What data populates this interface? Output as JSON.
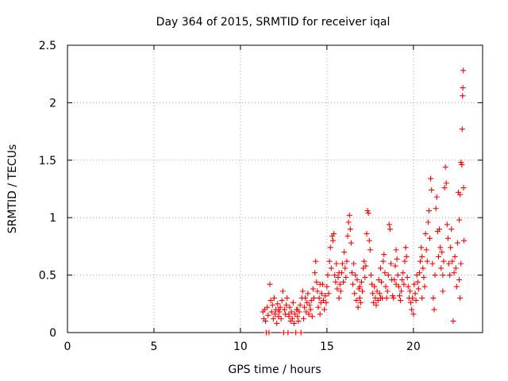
{
  "chart_data": {
    "type": "scatter",
    "title": "Day 364 of 2015, SRMTID for receiver iqal",
    "xlabel": "GPS time / hours",
    "ylabel": "SRMTID / TECUs",
    "xlim": [
      0,
      24
    ],
    "ylim": [
      0,
      2.5
    ],
    "xticks": [
      0,
      5,
      10,
      15,
      20
    ],
    "xtick_labels": [
      "0",
      "5",
      "10",
      "15",
      "20"
    ],
    "yticks": [
      0,
      0.5,
      1,
      1.5,
      2,
      2.5
    ],
    "ytick_labels": [
      "0",
      "0.5",
      "1",
      "1.5",
      "2",
      "2.5"
    ],
    "grid": true,
    "marker": "+",
    "color": "#ff0000",
    "series": [
      {
        "name": "SRMTID",
        "points": [
          [
            11.3,
            0.18
          ],
          [
            11.35,
            0.12
          ],
          [
            11.4,
            0.2
          ],
          [
            11.45,
            0.1
          ],
          [
            11.5,
            0.0
          ],
          [
            11.55,
            0.22
          ],
          [
            11.6,
            0.15
          ],
          [
            11.65,
            0.0
          ],
          [
            11.7,
            0.42
          ],
          [
            11.75,
            0.28
          ],
          [
            11.8,
            0.18
          ],
          [
            11.85,
            0.24
          ],
          [
            11.9,
            0.12
          ],
          [
            11.95,
            0.3
          ],
          [
            12.0,
            0.16
          ],
          [
            12.05,
            0.2
          ],
          [
            12.1,
            0.08
          ],
          [
            12.15,
            0.25
          ],
          [
            12.2,
            0.14
          ],
          [
            12.25,
            0.18
          ],
          [
            12.3,
            0.22
          ],
          [
            12.35,
            0.12
          ],
          [
            12.4,
            0.28
          ],
          [
            12.45,
            0.36
          ],
          [
            12.5,
            0.0
          ],
          [
            12.55,
            0.2
          ],
          [
            12.6,
            0.16
          ],
          [
            12.65,
            0.24
          ],
          [
            12.7,
            0.3
          ],
          [
            12.75,
            0.0
          ],
          [
            12.8,
            0.14
          ],
          [
            12.85,
            0.22
          ],
          [
            12.9,
            0.1
          ],
          [
            12.95,
            0.18
          ],
          [
            13.0,
            0.12
          ],
          [
            13.05,
            0.26
          ],
          [
            13.1,
            0.08
          ],
          [
            13.15,
            0.16
          ],
          [
            13.2,
            0.0
          ],
          [
            13.25,
            0.2
          ],
          [
            13.3,
            0.14
          ],
          [
            13.35,
            0.1
          ],
          [
            13.4,
            0.18
          ],
          [
            13.45,
            0.24
          ],
          [
            13.5,
            0.0
          ],
          [
            13.55,
            0.3
          ],
          [
            13.6,
            0.36
          ],
          [
            13.65,
            0.12
          ],
          [
            13.7,
            0.22
          ],
          [
            13.75,
            0.3
          ],
          [
            13.8,
            0.18
          ],
          [
            13.85,
            0.26
          ],
          [
            13.9,
            0.34
          ],
          [
            13.95,
            0.16
          ],
          [
            14.0,
            0.24
          ],
          [
            14.05,
            0.2
          ],
          [
            14.1,
            0.28
          ],
          [
            14.15,
            0.14
          ],
          [
            14.2,
            0.38
          ],
          [
            14.25,
            0.3
          ],
          [
            14.3,
            0.52
          ],
          [
            14.35,
            0.62
          ],
          [
            14.4,
            0.44
          ],
          [
            14.45,
            0.36
          ],
          [
            14.5,
            0.22
          ],
          [
            14.55,
            0.3
          ],
          [
            14.6,
            0.16
          ],
          [
            14.65,
            0.26
          ],
          [
            14.7,
            0.34
          ],
          [
            14.75,
            0.42
          ],
          [
            14.8,
            0.28
          ],
          [
            14.85,
            0.2
          ],
          [
            14.9,
            0.32
          ],
          [
            14.95,
            0.26
          ],
          [
            15.0,
            0.4
          ],
          [
            15.05,
            0.5
          ],
          [
            15.1,
            0.34
          ],
          [
            15.15,
            0.62
          ],
          [
            15.2,
            0.74
          ],
          [
            15.25,
            0.56
          ],
          [
            15.3,
            0.84
          ],
          [
            15.35,
            0.8
          ],
          [
            15.4,
            0.86
          ],
          [
            15.45,
            0.5
          ],
          [
            15.5,
            0.44
          ],
          [
            15.55,
            0.6
          ],
          [
            15.6,
            0.38
          ],
          [
            15.65,
            0.48
          ],
          [
            15.7,
            0.3
          ],
          [
            15.75,
            0.42
          ],
          [
            15.8,
            0.36
          ],
          [
            15.85,
            0.52
          ],
          [
            15.9,
            0.6
          ],
          [
            15.95,
            0.44
          ],
          [
            16.0,
            0.7
          ],
          [
            16.05,
            0.56
          ],
          [
            16.1,
            0.48
          ],
          [
            16.15,
            0.62
          ],
          [
            16.2,
            0.84
          ],
          [
            16.25,
            0.96
          ],
          [
            16.3,
            1.02
          ],
          [
            16.35,
            0.9
          ],
          [
            16.4,
            0.78
          ],
          [
            16.45,
            0.52
          ],
          [
            16.5,
            0.42
          ],
          [
            16.55,
            0.6
          ],
          [
            16.6,
            0.34
          ],
          [
            16.65,
            0.5
          ],
          [
            16.7,
            0.28
          ],
          [
            16.75,
            0.46
          ],
          [
            16.8,
            0.22
          ],
          [
            16.85,
            0.38
          ],
          [
            16.9,
            0.3
          ],
          [
            16.95,
            0.26
          ],
          [
            17.0,
            0.44
          ],
          [
            17.05,
            0.36
          ],
          [
            17.1,
            0.56
          ],
          [
            17.15,
            0.62
          ],
          [
            17.2,
            0.48
          ],
          [
            17.25,
            0.58
          ],
          [
            17.3,
            0.86
          ],
          [
            17.35,
            1.06
          ],
          [
            17.4,
            1.04
          ],
          [
            17.45,
            0.8
          ],
          [
            17.5,
            0.72
          ],
          [
            17.55,
            0.5
          ],
          [
            17.6,
            0.42
          ],
          [
            17.65,
            0.34
          ],
          [
            17.7,
            0.26
          ],
          [
            17.75,
            0.4
          ],
          [
            17.8,
            0.3
          ],
          [
            17.85,
            0.24
          ],
          [
            17.9,
            0.36
          ],
          [
            17.95,
            0.28
          ],
          [
            18.0,
            0.46
          ],
          [
            18.05,
            0.34
          ],
          [
            18.1,
            0.56
          ],
          [
            18.15,
            0.44
          ],
          [
            18.2,
            0.3
          ],
          [
            18.25,
            0.62
          ],
          [
            18.3,
            0.68
          ],
          [
            18.35,
            0.52
          ],
          [
            18.4,
            0.4
          ],
          [
            18.45,
            0.3
          ],
          [
            18.5,
            0.36
          ],
          [
            18.55,
            0.5
          ],
          [
            18.6,
            0.94
          ],
          [
            18.65,
            0.9
          ],
          [
            18.7,
            0.6
          ],
          [
            18.75,
            0.46
          ],
          [
            18.8,
            0.32
          ],
          [
            18.85,
            0.3
          ],
          [
            18.9,
            0.46
          ],
          [
            18.95,
            0.58
          ],
          [
            19.0,
            0.72
          ],
          [
            19.05,
            0.64
          ],
          [
            19.1,
            0.5
          ],
          [
            19.15,
            0.4
          ],
          [
            19.2,
            0.32
          ],
          [
            19.25,
            0.28
          ],
          [
            19.3,
            0.36
          ],
          [
            19.35,
            0.46
          ],
          [
            19.4,
            0.52
          ],
          [
            19.45,
            0.42
          ],
          [
            19.5,
            0.62
          ],
          [
            19.55,
            0.74
          ],
          [
            19.6,
            0.66
          ],
          [
            19.65,
            0.48
          ],
          [
            19.7,
            0.4
          ],
          [
            19.75,
            0.3
          ],
          [
            19.8,
            0.36
          ],
          [
            19.85,
            0.26
          ],
          [
            19.9,
            0.2
          ],
          [
            19.95,
            0.3
          ],
          [
            20.0,
            0.16
          ],
          [
            20.05,
            0.42
          ],
          [
            20.1,
            0.34
          ],
          [
            20.15,
            0.28
          ],
          [
            20.2,
            0.5
          ],
          [
            20.25,
            0.44
          ],
          [
            20.3,
            0.38
          ],
          [
            20.35,
            0.52
          ],
          [
            20.4,
            0.62
          ],
          [
            20.45,
            0.74
          ],
          [
            20.5,
            0.66
          ],
          [
            20.55,
            0.56
          ],
          [
            20.6,
            0.48
          ],
          [
            20.65,
            0.4
          ],
          [
            20.7,
            0.86
          ],
          [
            20.75,
            0.72
          ],
          [
            20.8,
            0.62
          ],
          [
            20.85,
            0.96
          ],
          [
            20.9,
            1.06
          ],
          [
            20.95,
            0.82
          ],
          [
            21.0,
            1.34
          ],
          [
            21.05,
            1.24
          ],
          [
            21.1,
            0.6
          ],
          [
            21.15,
            0.3
          ],
          [
            21.2,
            0.2
          ],
          [
            21.25,
            0.5
          ],
          [
            21.3,
            1.08
          ],
          [
            21.35,
            1.18
          ],
          [
            21.4,
            0.88
          ],
          [
            21.45,
            0.66
          ],
          [
            21.5,
            0.9
          ],
          [
            21.55,
            0.74
          ],
          [
            21.6,
            0.56
          ],
          [
            21.65,
            0.7
          ],
          [
            21.7,
            0.5
          ],
          [
            21.75,
            0.62
          ],
          [
            21.8,
            1.26
          ],
          [
            21.85,
            1.44
          ],
          [
            21.9,
            1.3
          ],
          [
            21.95,
            0.94
          ],
          [
            22.0,
            0.82
          ],
          [
            22.05,
            0.6
          ],
          [
            22.1,
            0.5
          ],
          [
            22.15,
            0.74
          ],
          [
            22.2,
            0.9
          ],
          [
            22.25,
            0.62
          ],
          [
            22.3,
            0.1
          ],
          [
            22.35,
            0.52
          ],
          [
            22.4,
            0.66
          ],
          [
            22.45,
            0.56
          ],
          [
            22.5,
            0.4
          ],
          [
            22.55,
            0.78
          ],
          [
            22.6,
            1.22
          ],
          [
            22.65,
            0.98
          ],
          [
            22.7,
            1.2
          ],
          [
            22.75,
            1.48
          ],
          [
            22.8,
            1.46
          ],
          [
            22.82,
            1.77
          ],
          [
            22.84,
            2.06
          ],
          [
            22.86,
            2.13
          ],
          [
            22.88,
            2.28
          ],
          [
            22.9,
            1.26
          ],
          [
            22.92,
            0.8
          ],
          [
            22.75,
            0.6
          ],
          [
            22.7,
            0.3
          ],
          [
            22.65,
            0.46
          ],
          [
            12.2,
            0.2
          ],
          [
            12.8,
            0.16
          ],
          [
            13.3,
            0.2
          ],
          [
            14.6,
            0.42
          ],
          [
            15.7,
            0.52
          ],
          [
            16.9,
            0.4
          ],
          [
            18.1,
            0.3
          ],
          [
            19.0,
            0.42
          ],
          [
            20.5,
            0.3
          ],
          [
            21.7,
            0.36
          ]
        ]
      }
    ]
  }
}
